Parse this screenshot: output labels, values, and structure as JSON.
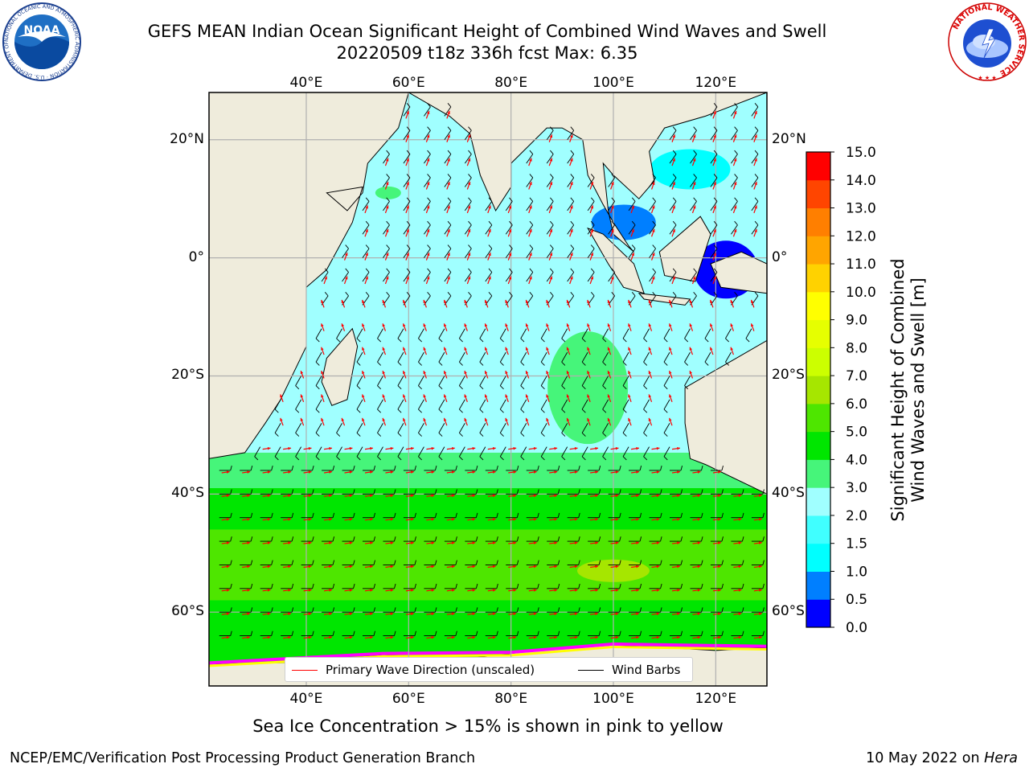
{
  "header": {
    "title_line1": "GEFS MEAN Indian Ocean Significant Height of Combined Wind Waves and Swell",
    "title_line2": "20220509 t18z 336h fcst   Max: 6.35"
  },
  "logos": {
    "noaa": {
      "center_text": "NOAA",
      "ring_text": "NATIONAL OCEANIC AND ATMOSPHERIC ADMINISTRATION · U.S. DEPARTMENT OF COMMERCE"
    },
    "nws": {
      "ring_text": "NATIONAL WEATHER SERVICE"
    }
  },
  "map": {
    "lon_labels": [
      "40°E",
      "60°E",
      "80°E",
      "100°E",
      "120°E"
    ],
    "lat_labels": [
      "20°N",
      "0°",
      "20°S",
      "40°S",
      "60°S"
    ],
    "lon_range": [
      21,
      130
    ],
    "lat_range": [
      -72.5,
      28
    ],
    "legend": {
      "wave_direction": "Primary Wave Direction (unscaled)",
      "wind_barbs": "Wind Barbs"
    },
    "colors": {
      "land": "#efecdc",
      "wave_arrows": "#ff0000",
      "wind_barbs": "#000000",
      "sea_ice": [
        "#ff00ff",
        "#ffa500",
        "#ffff00"
      ]
    }
  },
  "colorbar": {
    "title_line1": "Significant Height of Combined",
    "title_line2": "Wind Waves and Swell [m]",
    "tick_labels": [
      "0.0",
      "0.5",
      "1.0",
      "1.5",
      "2.0",
      "3.0",
      "4.0",
      "5.0",
      "6.0",
      "7.0",
      "8.0",
      "9.0",
      "10.0",
      "11.0",
      "12.0",
      "13.0",
      "14.0",
      "15.0"
    ],
    "colors": [
      "#0000ff",
      "#007fff",
      "#00ffff",
      "#40ffff",
      "#a0ffff",
      "#46f57a",
      "#00e600",
      "#4ee600",
      "#a6e600",
      "#ccff00",
      "#e6ff00",
      "#ffff00",
      "#ffd200",
      "#ffa500",
      "#ff7f00",
      "#ff4500",
      "#ff0000"
    ]
  },
  "caption": "Sea Ice Concentration > 15% is shown in pink to yellow",
  "footer": {
    "left": "NCEP/EMC/Verification Post Processing Product Generation Branch",
    "right_date": "10 May 2022 on ",
    "right_host": "Hera"
  }
}
